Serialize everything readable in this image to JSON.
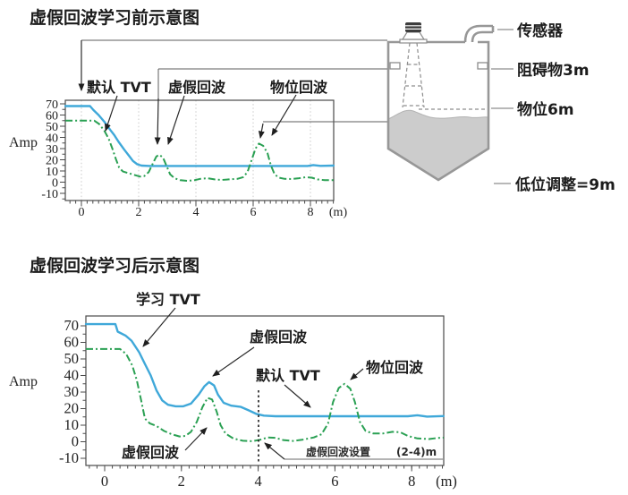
{
  "titles": {
    "before": "虚假回波学习前示意图",
    "after": "虚假回波学习后示意图"
  },
  "tank": {
    "sensor": "传感器",
    "obstacle": "阻碍物3m",
    "level": "物位6m",
    "low_adjustment": "低位调整=9m"
  },
  "chart_data": [
    {
      "type": "line",
      "section": "before-learning",
      "ylabel": "Amp",
      "x_unit": "(m)",
      "x_ticks": [
        0,
        2,
        4,
        6,
        8
      ],
      "y_ticks": [
        70,
        60,
        50,
        40,
        30,
        20,
        10,
        0,
        -10
      ],
      "xlim": [
        -0.56,
        8.81
      ],
      "ylim": [
        -16,
        73
      ],
      "grid": "vertical-dotted",
      "legend_position": "none",
      "annotations": {
        "default_tvt": "默认 TVT",
        "false_echo": "虚假回波",
        "level_echo": "物位回波"
      },
      "series": [
        {
          "id": "default-tvt",
          "color": "#3fa8d9",
          "line": "solid",
          "points": [
            [
              -0.56,
              68
            ],
            [
              0.3,
              68
            ],
            [
              0.42,
              64.5
            ],
            [
              0.6,
              60
            ],
            [
              0.8,
              54
            ],
            [
              1.0,
              47
            ],
            [
              1.15,
              42
            ],
            [
              1.3,
              36
            ],
            [
              1.5,
              29
            ],
            [
              1.65,
              24
            ],
            [
              1.8,
              19
            ],
            [
              1.95,
              16
            ],
            [
              2.1,
              14.8
            ],
            [
              2.4,
              14.5
            ],
            [
              7.9,
              14.5
            ],
            [
              8.1,
              15.3
            ],
            [
              8.35,
              14.6
            ],
            [
              8.81,
              14.8
            ]
          ]
        },
        {
          "id": "echo-curve",
          "color": "#2aa053",
          "line": "dashdot",
          "points": [
            [
              -0.56,
              55
            ],
            [
              0.45,
              55
            ],
            [
              0.62,
              52
            ],
            [
              0.8,
              46
            ],
            [
              0.95,
              39
            ],
            [
              1.08,
              30
            ],
            [
              1.2,
              21
            ],
            [
              1.32,
              13
            ],
            [
              1.45,
              9.5
            ],
            [
              1.65,
              8
            ],
            [
              1.85,
              6.5
            ],
            [
              2.05,
              5
            ],
            [
              2.2,
              5.5
            ],
            [
              2.35,
              9
            ],
            [
              2.5,
              17
            ],
            [
              2.62,
              23
            ],
            [
              2.72,
              24.5
            ],
            [
              2.85,
              22
            ],
            [
              2.98,
              14
            ],
            [
              3.1,
              7
            ],
            [
              3.25,
              3.5
            ],
            [
              3.45,
              1.8
            ],
            [
              3.7,
              1.2
            ],
            [
              3.95,
              1.8
            ],
            [
              4.15,
              3
            ],
            [
              4.4,
              3.5
            ],
            [
              4.65,
              2.5
            ],
            [
              4.9,
              2
            ],
            [
              5.15,
              2.5
            ],
            [
              5.45,
              3
            ],
            [
              5.65,
              4.5
            ],
            [
              5.8,
              9
            ],
            [
              5.95,
              20
            ],
            [
              6.08,
              30
            ],
            [
              6.2,
              34.5
            ],
            [
              6.35,
              32.5
            ],
            [
              6.5,
              26
            ],
            [
              6.62,
              15
            ],
            [
              6.75,
              7
            ],
            [
              6.9,
              4
            ],
            [
              7.1,
              3
            ],
            [
              7.35,
              2.8
            ],
            [
              7.6,
              3.5
            ],
            [
              7.85,
              4.5
            ],
            [
              8.05,
              4
            ],
            [
              8.25,
              2.5
            ],
            [
              8.5,
              1.8
            ],
            [
              8.81,
              1.8
            ]
          ]
        }
      ]
    },
    {
      "type": "line",
      "section": "after-learning",
      "ylabel": "Amp",
      "x_unit": "(m)",
      "x_ticks": [
        0,
        2,
        4,
        6,
        8
      ],
      "y_ticks": [
        70,
        60,
        50,
        40,
        30,
        20,
        10,
        0,
        -10
      ],
      "xlim": [
        -0.49,
        8.83
      ],
      "ylim": [
        -14,
        76
      ],
      "grid": "none",
      "legend_position": "none",
      "annotations": {
        "learned_tvt": "学习 TVT",
        "false_echo_top": "虚假回波",
        "default_tvt": "默认 TVT",
        "false_echo_bottom": "虚假回波",
        "level_echo": "物位回波",
        "false_echo_range_label": "虚假回波设置",
        "false_echo_range_value": "(2-4)m",
        "range_marker_x": 4
      },
      "series": [
        {
          "id": "learned-tvt",
          "color": "#3fa8d9",
          "line": "solid",
          "points": [
            [
              -0.49,
              71
            ],
            [
              0.28,
              71
            ],
            [
              0.34,
              66.5
            ],
            [
              0.55,
              64
            ],
            [
              0.7,
              61
            ],
            [
              0.9,
              54
            ],
            [
              1.05,
              47
            ],
            [
              1.2,
              40
            ],
            [
              1.35,
              31
            ],
            [
              1.5,
              25
            ],
            [
              1.65,
              22.3
            ],
            [
              1.85,
              21.4
            ],
            [
              2.05,
              21.4
            ],
            [
              2.25,
              23
            ],
            [
              2.45,
              28.5
            ],
            [
              2.6,
              33.5
            ],
            [
              2.72,
              36
            ],
            [
              2.85,
              34
            ],
            [
              2.95,
              28.5
            ],
            [
              3.1,
              23.5
            ],
            [
              3.3,
              21.8
            ],
            [
              3.55,
              21
            ],
            [
              3.75,
              19
            ],
            [
              3.95,
              16.8
            ],
            [
              4.15,
              15.8
            ],
            [
              4.45,
              15.4
            ],
            [
              7.9,
              15.4
            ],
            [
              8.15,
              16
            ],
            [
              8.4,
              15.2
            ],
            [
              8.83,
              15.5
            ]
          ]
        },
        {
          "id": "echo-curve",
          "color": "#2aa053",
          "line": "dashdot",
          "points": [
            [
              -0.49,
              56
            ],
            [
              0.4,
              56
            ],
            [
              0.56,
              53
            ],
            [
              0.72,
              46
            ],
            [
              0.84,
              37
            ],
            [
              0.95,
              25
            ],
            [
              1.05,
              14
            ],
            [
              1.18,
              11
            ],
            [
              1.35,
              9.5
            ],
            [
              1.55,
              6.5
            ],
            [
              1.75,
              4.5
            ],
            [
              1.95,
              3.2
            ],
            [
              2.1,
              3.5
            ],
            [
              2.25,
              6
            ],
            [
              2.4,
              12
            ],
            [
              2.55,
              21
            ],
            [
              2.68,
              26.5
            ],
            [
              2.8,
              25.5
            ],
            [
              2.92,
              18
            ],
            [
              3.02,
              10
            ],
            [
              3.15,
              5
            ],
            [
              3.35,
              2
            ],
            [
              3.6,
              0.6
            ],
            [
              3.85,
              0.3
            ],
            [
              4.05,
              1.2
            ],
            [
              4.25,
              2.6
            ],
            [
              4.45,
              2.4
            ],
            [
              4.65,
              1
            ],
            [
              4.9,
              0.5
            ],
            [
              5.15,
              1.2
            ],
            [
              5.45,
              2.6
            ],
            [
              5.65,
              4.5
            ],
            [
              5.82,
              11
            ],
            [
              5.95,
              24
            ],
            [
              6.1,
              32.5
            ],
            [
              6.25,
              35
            ],
            [
              6.4,
              32
            ],
            [
              6.52,
              24
            ],
            [
              6.65,
              12
            ],
            [
              6.8,
              6.5
            ],
            [
              7.0,
              5
            ],
            [
              7.25,
              5
            ],
            [
              7.5,
              6
            ],
            [
              7.7,
              5.8
            ],
            [
              7.9,
              3.5
            ],
            [
              8.15,
              2
            ],
            [
              8.45,
              1.6
            ],
            [
              8.65,
              2.2
            ],
            [
              8.83,
              2.5
            ]
          ]
        }
      ]
    }
  ]
}
